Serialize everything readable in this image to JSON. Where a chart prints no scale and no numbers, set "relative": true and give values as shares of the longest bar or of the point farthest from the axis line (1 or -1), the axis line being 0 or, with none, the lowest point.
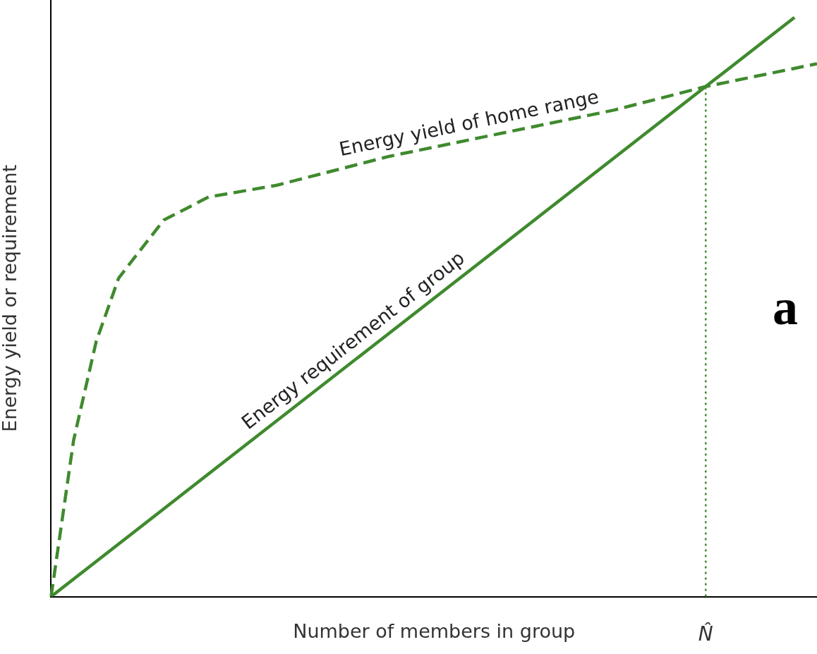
{
  "chart_data": {
    "type": "line",
    "relative": true,
    "xlabel": "Number of members in group",
    "ylabel": "Energy yield or requirement",
    "categories": [
      null,
      null,
      null,
      null,
      null,
      null,
      null,
      null,
      null,
      null,
      null,
      null,
      null,
      null,
      null,
      null,
      null,
      null,
      null,
      null,
      null,
      null,
      null,
      null,
      null,
      null,
      null,
      null,
      null,
      null,
      null,
      null,
      null,
      null,
      null
    ],
    "series": [
      {
        "name": "Energy yield of home range",
        "color": "#3f8a2e",
        "line_style": "dashed",
        "values": [
          0,
          0.27,
          0.44,
          0.55,
          0.6,
          0.65,
          0.67,
          0.69,
          null,
          null,
          0.71,
          null,
          null,
          null,
          null,
          0.76,
          null,
          null,
          null,
          null,
          0.8,
          null,
          null,
          null,
          null,
          0.84,
          null,
          null,
          null,
          0.88,
          null,
          null,
          null,
          null,
          0.92
        ]
      },
      {
        "name": "Energy requirement of group",
        "color": "#3f8a2e",
        "line_style": "solid",
        "values": [
          0,
          null,
          null,
          null,
          null,
          null,
          null,
          null,
          null,
          null,
          null,
          null,
          null,
          null,
          null,
          null,
          null,
          null,
          null,
          null,
          null,
          null,
          null,
          null,
          null,
          null,
          null,
          null,
          null,
          null,
          null,
          null,
          null,
          1,
          null
        ]
      }
    ],
    "annotations": [
      "N̂",
      "a"
    ],
    "tick_labels": false,
    "grid": false,
    "legend": false
  }
}
